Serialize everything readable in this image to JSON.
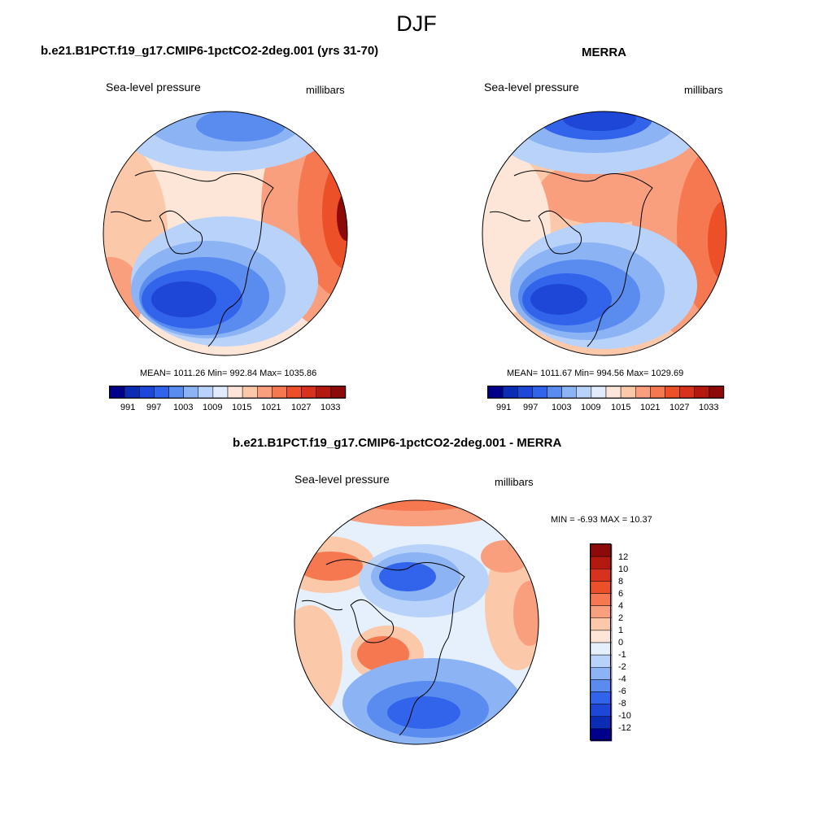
{
  "figure_title": "DJF",
  "panels": [
    {
      "title": "b.e21.B1PCT.f19_g17.CMIP6-1pctCO2-2deg.001 (yrs 31-70)",
      "variable": "Sea-level pressure",
      "units": "millibars",
      "stats": "MEAN= 1011.26  Min= 992.84  Max= 1035.86"
    },
    {
      "title": "MERRA",
      "variable": "Sea-level pressure",
      "units": "millibars",
      "stats": "MEAN= 1011.67  Min= 994.56  Max= 1029.69"
    },
    {
      "title": "b.e21.B1PCT.f19_g17.CMIP6-1pctCO2-2deg.001 - MERRA",
      "variable": "Sea-level pressure",
      "units": "millibars",
      "stats": "MIN =  -6.93 MAX =  10.37"
    }
  ],
  "colorbars": {
    "absolute": {
      "labels": [
        "991",
        "997",
        "1003",
        "1009",
        "1015",
        "1021",
        "1027",
        "1033"
      ],
      "colors": [
        "#00008b",
        "#0a2db4",
        "#1e46d7",
        "#3264eb",
        "#5a8cf0",
        "#8cb4f5",
        "#b9d2fa",
        "#e1ebfc",
        "#fde6d7",
        "#fcc8aa",
        "#fa9f7d",
        "#f57850",
        "#eb5028",
        "#d7321e",
        "#b4190f",
        "#8c0a0a"
      ]
    },
    "difference": {
      "labels": [
        "12",
        "10",
        "8",
        "6",
        "4",
        "2",
        "1",
        "0",
        "-1",
        "-2",
        "-4",
        "-6",
        "-8",
        "-10",
        "-12"
      ],
      "colors": [
        "#8c0a0a",
        "#b4190f",
        "#d7321e",
        "#eb5028",
        "#f57850",
        "#fa9f7d",
        "#fcc8aa",
        "#fde6d7",
        "#e6f0fc",
        "#b9d2fa",
        "#8cb4f5",
        "#5a8cf0",
        "#3264eb",
        "#1e46d7",
        "#0a2db4",
        "#00008b"
      ]
    }
  },
  "colors": {
    "low": "#1e46d7",
    "high": "#eb5028",
    "neutral": "#fde6d7"
  }
}
